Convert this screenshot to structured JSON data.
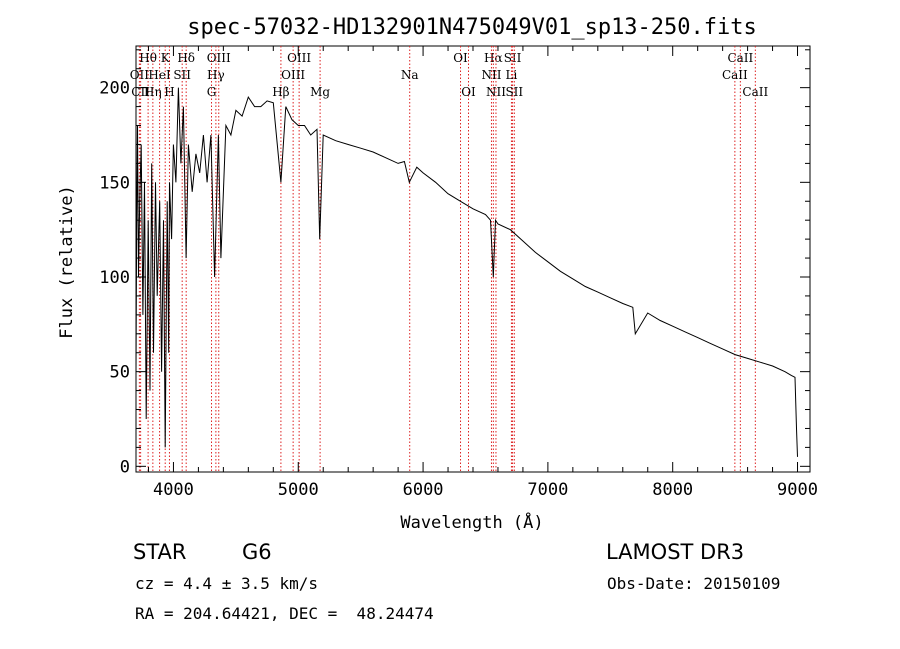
{
  "chart_data": {
    "type": "line",
    "title": "spec-57032-HD132901N475049V01_sp13-250.fits",
    "xlabel": "Wavelength (Å)",
    "ylabel": "Flux (relative)",
    "xlim": [
      3700,
      9100
    ],
    "ylim": [
      -3,
      222
    ],
    "xticks": [
      4000,
      5000,
      6000,
      7000,
      8000,
      9000
    ],
    "yticks": [
      0,
      50,
      100,
      150,
      200
    ],
    "grid": false,
    "series": [
      {
        "name": "spectrum",
        "x": [
          3700,
          3705,
          3712,
          3720,
          3730,
          3742,
          3755,
          3768,
          3782,
          3798,
          3812,
          3826,
          3840,
          3856,
          3870,
          3890,
          3905,
          3920,
          3934,
          3950,
          3962,
          3968,
          3985,
          4000,
          4020,
          4040,
          4060,
          4080,
          4101,
          4120,
          4150,
          4180,
          4210,
          4240,
          4270,
          4300,
          4330,
          4360,
          4380,
          4420,
          4460,
          4500,
          4550,
          4600,
          4650,
          4700,
          4750,
          4800,
          4861,
          4900,
          4950,
          5000,
          5050,
          5100,
          5150,
          5172,
          5200,
          5300,
          5400,
          5500,
          5600,
          5700,
          5800,
          5850,
          5890,
          5950,
          6000,
          6100,
          6200,
          6300,
          6400,
          6500,
          6540,
          6563,
          6580,
          6600,
          6700,
          6800,
          6900,
          7000,
          7100,
          7200,
          7300,
          7400,
          7500,
          7600,
          7680,
          7700,
          7800,
          7900,
          8000,
          8100,
          8200,
          8300,
          8400,
          8500,
          8600,
          8700,
          8800,
          8900,
          8950,
          8980,
          8992,
          9000
        ],
        "values": [
          50,
          120,
          180,
          100,
          140,
          170,
          80,
          150,
          25,
          130,
          40,
          160,
          60,
          150,
          90,
          140,
          50,
          130,
          10,
          140,
          60,
          150,
          120,
          170,
          150,
          200,
          160,
          190,
          110,
          170,
          145,
          165,
          155,
          175,
          150,
          175,
          100,
          175,
          110,
          180,
          175,
          188,
          185,
          195,
          190,
          190,
          193,
          192,
          150,
          190,
          183,
          180,
          180,
          175,
          178,
          120,
          175,
          172,
          170,
          168,
          166,
          163,
          160,
          161,
          150,
          158,
          155,
          150,
          144,
          140,
          136,
          133,
          130,
          100,
          130,
          128,
          125,
          119,
          113,
          108,
          103,
          99,
          95,
          92,
          89,
          86,
          84,
          70,
          81,
          77,
          74,
          71,
          68,
          65,
          62,
          59,
          57,
          55,
          53,
          50,
          48,
          47,
          20,
          5
        ]
      }
    ],
    "lines": [
      {
        "name": "Hθ",
        "x": 3797,
        "row": 1
      },
      {
        "name": "OII",
        "x": 3727,
        "row": 2
      },
      {
        "name": "CII",
        "x": 3737,
        "row": 3
      },
      {
        "name": "Hη",
        "x": 3835,
        "row": 3
      },
      {
        "name": "K",
        "x": 3934,
        "row": 1
      },
      {
        "name": "HeI",
        "x": 3889,
        "row": 2
      },
      {
        "name": "H",
        "x": 3968,
        "row": 3
      },
      {
        "name": "SII",
        "x": 4070,
        "row": 2
      },
      {
        "name": "Hδ",
        "x": 4102,
        "row": 1
      },
      {
        "name": "OIII",
        "x": 4363,
        "row": 1
      },
      {
        "name": "Hγ",
        "x": 4340,
        "row": 2
      },
      {
        "name": "G",
        "x": 4305,
        "row": 3
      },
      {
        "name": "Hβ",
        "x": 4861,
        "row": 3
      },
      {
        "name": "OIII",
        "x": 5007,
        "row": 1
      },
      {
        "name": "OIII",
        "x": 4959,
        "row": 2
      },
      {
        "name": "Mg",
        "x": 5175,
        "row": 3
      },
      {
        "name": "Na",
        "x": 5893,
        "row": 2
      },
      {
        "name": "OI",
        "x": 6300,
        "row": 1
      },
      {
        "name": "OI",
        "x": 6364,
        "row": 3
      },
      {
        "name": "Hα",
        "x": 6563,
        "row": 1
      },
      {
        "name": "NII",
        "x": 6548,
        "row": 2
      },
      {
        "name": "NII",
        "x": 6584,
        "row": 3
      },
      {
        "name": "SII",
        "x": 6717,
        "row": 1
      },
      {
        "name": "Li",
        "x": 6708,
        "row": 2
      },
      {
        "name": "SII",
        "x": 6731,
        "row": 3
      },
      {
        "name": "CaII",
        "x": 8542,
        "row": 1
      },
      {
        "name": "CaII",
        "x": 8498,
        "row": 2
      },
      {
        "name": "CaII",
        "x": 8662,
        "row": 3
      }
    ]
  },
  "info": {
    "object_class": "STAR",
    "subclass": "G6",
    "survey": "LAMOST DR3",
    "redshift": "cz = 4.4 ± 3.5 km/s",
    "obs_date": "Obs-Date: 20150109",
    "coords": "RA = 204.64421, DEC =  48.24474"
  }
}
